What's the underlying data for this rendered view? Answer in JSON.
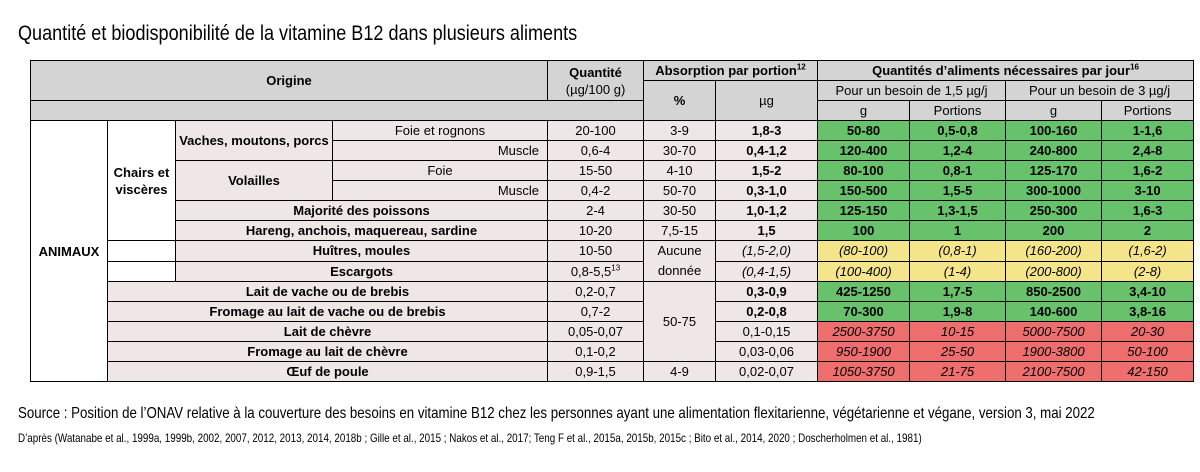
{
  "title": "Quantité et biodisponibilité de la vitamine B12 dans plusieurs aliments",
  "headers": {
    "origine": "Origine",
    "quantite": "Quantité",
    "quantite_unit": "(µg/100 g)",
    "absorption": "Absorption par portion",
    "absorption_sup": "12",
    "pct": "%",
    "ug": "µg",
    "necessaires": "Quantités d’aliments nécessaires par jour",
    "necessaires_sup": "16",
    "besoin1": "Pour un besoin de 1,5 µg/j",
    "besoin2": "Pour un besoin de 3 µg/j",
    "g": "g",
    "portions": "Portions"
  },
  "groups": {
    "animaux": "ANIMAUX",
    "chairs": "Chairs et viscères",
    "vaches": "Vaches, moutons, porcs",
    "volailles": "Volailles",
    "aucune": "Aucune donnée",
    "abs_lait": "50-75",
    "abs_oeuf": "4-9"
  },
  "rows": [
    {
      "name": "Foie et rognons",
      "qty": "20-100",
      "pct": "3-9",
      "ug": "1,8-3",
      "g1": "50-80",
      "p1": "0,5-0,8",
      "g2": "100-160",
      "p2": "1-1,6"
    },
    {
      "name": "Muscle",
      "qty": "0,6-4",
      "pct": "30-70",
      "ug": "0,4-1,2",
      "g1": "120-400",
      "p1": "1,2-4",
      "g2": "240-800",
      "p2": "2,4-8"
    },
    {
      "name": "Foie",
      "qty": "15-50",
      "pct": "4-10",
      "ug": "1,5-2",
      "g1": "80-100",
      "p1": "0,8-1",
      "g2": "125-170",
      "p2": "1,6-2"
    },
    {
      "name": "Muscle",
      "qty": "0,4-2",
      "pct": "50-70",
      "ug": "0,3-1,0",
      "g1": "150-500",
      "p1": "1,5-5",
      "g2": "300-1000",
      "p2": "3-10"
    },
    {
      "name": "Majorité des poissons",
      "qty": "2-4",
      "pct": "30-50",
      "ug": "1,0-1,2",
      "g1": "125-150",
      "p1": "1,3-1,5",
      "g2": "250-300",
      "p2": "1,6-3"
    },
    {
      "name": "Hareng, anchois, maquereau, sardine",
      "qty": "10-20",
      "pct": "7,5-15",
      "ug": "1,5",
      "g1": "100",
      "p1": "1",
      "g2": "200",
      "p2": "2"
    },
    {
      "name": "Huîtres, moules",
      "qty": "10-50",
      "ug": "(1,5-2,0)",
      "g1": "(80-100)",
      "p1": "(0,8-1)",
      "g2": "(160-200)",
      "p2": "(1,6-2)"
    },
    {
      "name": "Escargots",
      "qty": "0,8-5,5",
      "qty_sup": "13",
      "ug": "(0,4-1,5)",
      "g1": "(100-400)",
      "p1": "(1-4)",
      "g2": "(200-800)",
      "p2": "(2-8)"
    },
    {
      "name": "Lait de vache ou de brebis",
      "qty": "0,2-0,7",
      "ug": "0,3-0,9",
      "g1": "425-1250",
      "p1": "1,7-5",
      "g2": "850-2500",
      "p2": "3,4-10"
    },
    {
      "name": "Fromage au lait de vache ou de brebis",
      "qty": "0,7-2",
      "ug": "0,2-0,8",
      "g1": "70-300",
      "p1": "1,9-8",
      "g2": "140-600",
      "p2": "3,8-16"
    },
    {
      "name": "Lait de chèvre",
      "qty": "0,05-0,07",
      "ug": "0,1-0,15",
      "g1": "2500-3750",
      "p1": "10-15",
      "g2": "5000-7500",
      "p2": "20-30"
    },
    {
      "name": "Fromage au lait de chèvre",
      "qty": "0,1-0,2",
      "ug": "0,03-0,06",
      "g1": "950-1900",
      "p1": "25-50",
      "g2": "1900-3800",
      "p2": "50-100"
    },
    {
      "name": "Œuf de poule",
      "qty": "0,9-1,5",
      "ug": "0,02-0,07",
      "g1": "1050-3750",
      "p1": "21-75",
      "g2": "2100-7500",
      "p2": "42-150"
    }
  ],
  "colors": {
    "green": "#68c26b",
    "yellow": "#f5e58a",
    "red": "#ee6d6d",
    "header": "#d4d4d4",
    "cell": "#efe6e6"
  },
  "source": "Source : Position de l’ONAV relative à la couverture des besoins en vitamine B12 chez les personnes ayant une alimentation flexitarienne, végétarienne et végane, version 3, mai 2022",
  "refs": "D’après (Watanabe et al., 1999a, 1999b, 2002, 2007, 2012, 2013, 2014, 2018b ; Gille et al., 2015 ; Nakos et al., 2017; Teng F et al., 2015a, 2015b, 2015c ; Bito et al., 2014, 2020 ; Doscherholmen et al., 1981)"
}
